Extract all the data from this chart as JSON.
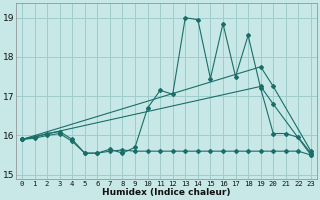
{
  "bg_color": "#c8e8e8",
  "grid_color": "#a0cccc",
  "line_color": "#1a6e68",
  "xlim": [
    -0.5,
    23.5
  ],
  "ylim": [
    14.88,
    19.38
  ],
  "yticks": [
    15,
    16,
    17,
    18,
    19
  ],
  "xticks": [
    0,
    1,
    2,
    3,
    4,
    5,
    6,
    7,
    8,
    9,
    10,
    11,
    12,
    13,
    14,
    15,
    16,
    17,
    18,
    19,
    20,
    21,
    22,
    23
  ],
  "xlabel": "Humidex (Indice chaleur)",
  "line_spiky": {
    "x": [
      0,
      1,
      2,
      3,
      4,
      5,
      6,
      7,
      8,
      9,
      10,
      11,
      12,
      13,
      14,
      15,
      16,
      17,
      18,
      19,
      20,
      21,
      22,
      23
    ],
    "y": [
      15.9,
      15.95,
      16.05,
      16.1,
      15.9,
      15.55,
      15.55,
      15.65,
      15.55,
      15.7,
      16.7,
      17.15,
      17.05,
      19.0,
      18.95,
      17.45,
      18.85,
      17.5,
      18.55,
      17.2,
      16.05,
      16.05,
      15.95,
      15.55
    ]
  },
  "line_flat": {
    "x": [
      0,
      1,
      2,
      3,
      4,
      5,
      6,
      7,
      8,
      9,
      10,
      11,
      12,
      13,
      14,
      15,
      16,
      17,
      18,
      19,
      20,
      21,
      22,
      23
    ],
    "y": [
      15.9,
      15.93,
      16.0,
      16.05,
      15.85,
      15.55,
      15.55,
      15.6,
      15.63,
      15.6,
      15.6,
      15.6,
      15.6,
      15.6,
      15.6,
      15.6,
      15.6,
      15.6,
      15.6,
      15.6,
      15.6,
      15.6,
      15.6,
      15.5
    ]
  },
  "line_diag_upper": {
    "x": [
      0,
      19,
      20,
      23
    ],
    "y": [
      15.9,
      17.75,
      17.25,
      15.6
    ]
  },
  "line_diag_lower": {
    "x": [
      0,
      19,
      20,
      23
    ],
    "y": [
      15.9,
      17.25,
      16.8,
      15.5
    ]
  }
}
